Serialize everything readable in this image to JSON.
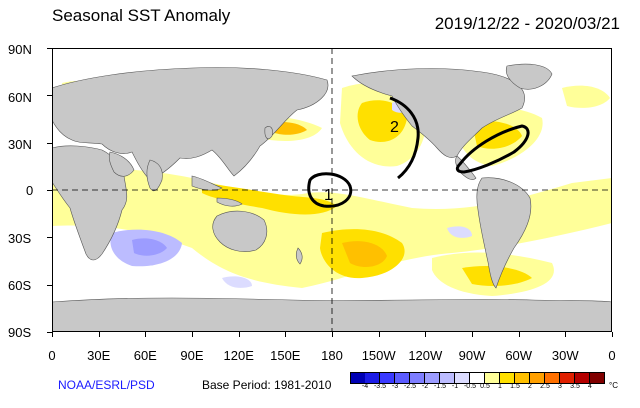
{
  "header": {
    "title": "Seasonal SST Anomaly",
    "date_range": "2019/12/22 - 2020/03/21"
  },
  "axes": {
    "lat_labels": [
      "90N",
      "60N",
      "30N",
      "0",
      "30S",
      "60S",
      "90S"
    ],
    "lon_labels": [
      "0",
      "30E",
      "60E",
      "90E",
      "120E",
      "150E",
      "180",
      "150W",
      "120W",
      "90W",
      "60W",
      "30W",
      "0"
    ]
  },
  "footer": {
    "credit": "NOAA/ESRL/PSD",
    "base_period": "Base Period: 1981-2010"
  },
  "colorbar": {
    "labels": [
      "-4",
      "-3.5",
      "-3",
      "-2.5",
      "-2",
      "-1.5",
      "-1",
      "-0.5",
      "0.5",
      "1",
      "1.5",
      "2",
      "2.5",
      "3",
      "3.5",
      "4"
    ],
    "colors": [
      "#0000b4",
      "#1c1ce6",
      "#3a3aff",
      "#5c5cff",
      "#7e7eff",
      "#9c9cff",
      "#bcbcff",
      "#dcdcff",
      "#ffffff",
      "#ffff99",
      "#ffe000",
      "#ffc000",
      "#ffa000",
      "#ff7000",
      "#e02000",
      "#b40000",
      "#800000"
    ],
    "unit": "°C"
  },
  "annotations": {
    "label_1": "1",
    "label_2": "2"
  },
  "map_colors": {
    "land": "#c8c8c8",
    "ocean_neutral": "#ffffff"
  }
}
